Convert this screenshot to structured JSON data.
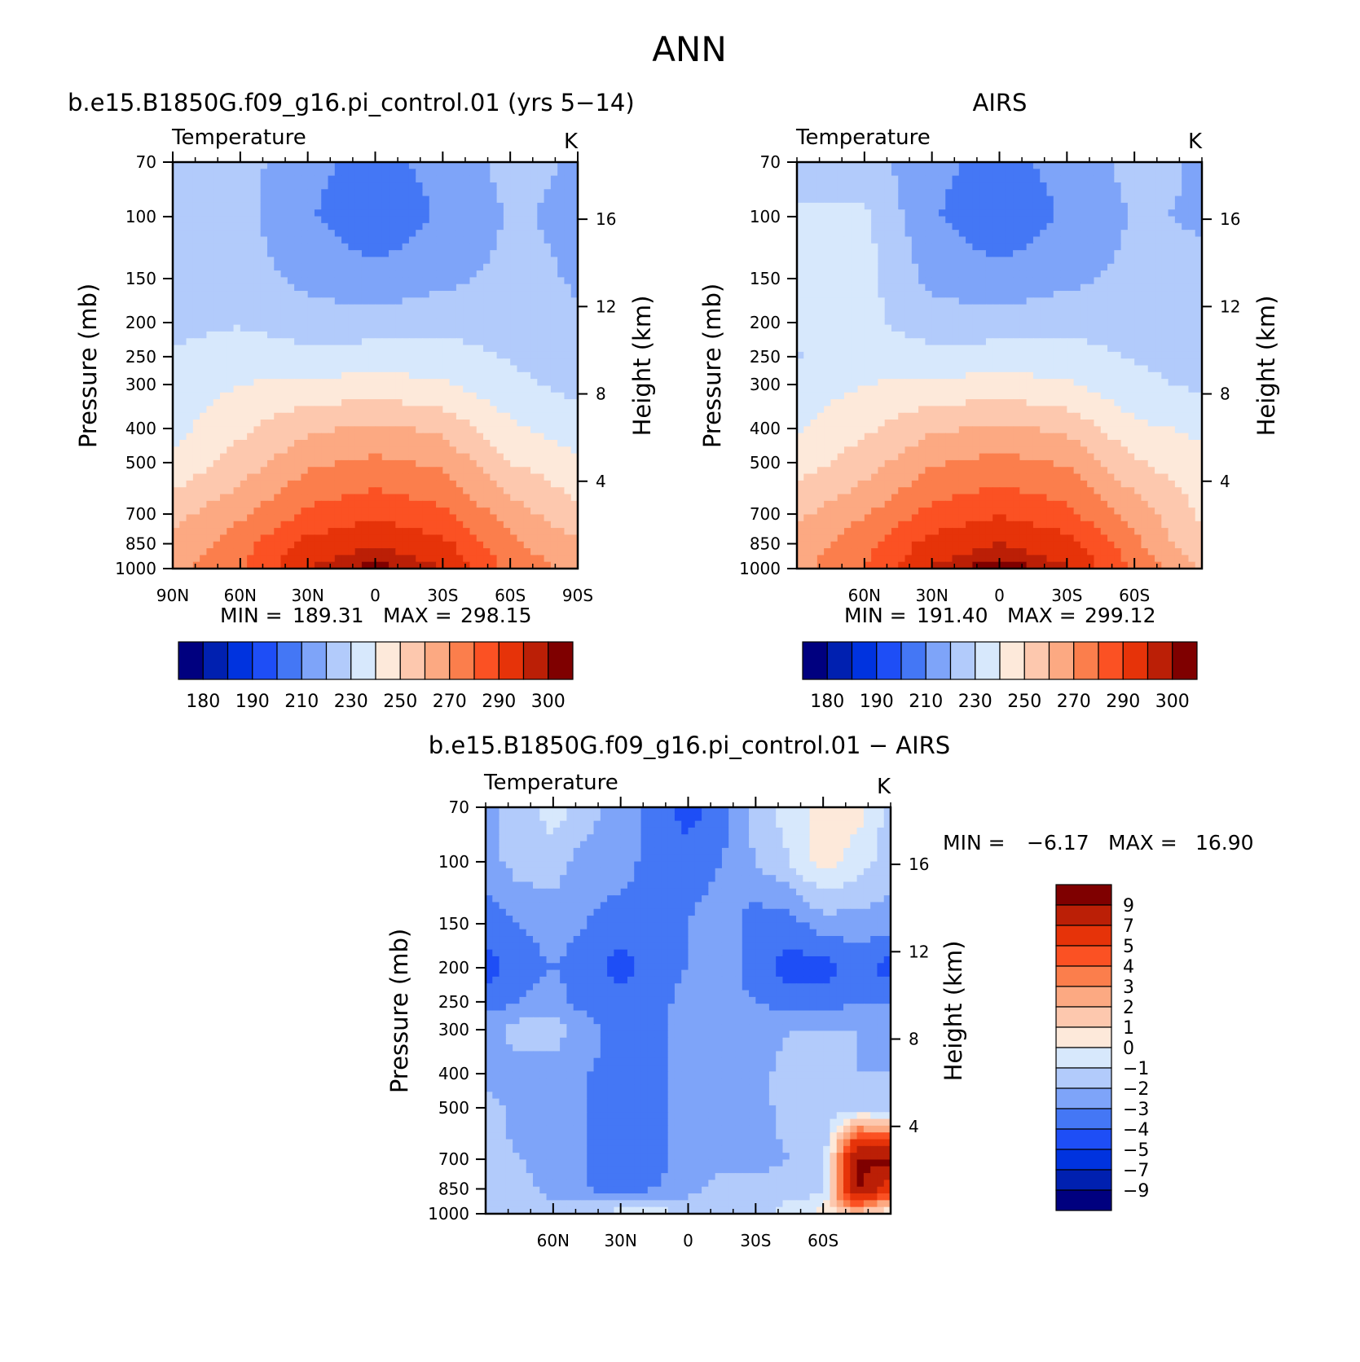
{
  "figure": {
    "title": "ANN"
  },
  "colorbars": {
    "abs": {
      "colors": [
        "#00007f",
        "#0020b0",
        "#0033df",
        "#1e4ef6",
        "#4477f5",
        "#7ea4f9",
        "#b2cbfb",
        "#d7e8fc",
        "#fde9da",
        "#fdc8ae",
        "#fca982",
        "#fb7e4c",
        "#fb5123",
        "#e63309",
        "#bb1f06",
        "#7f0000"
      ],
      "labels": [
        "180",
        "190",
        "210",
        "230",
        "250",
        "270",
        "290",
        "300"
      ]
    },
    "diff": {
      "colors": [
        "#7f0000",
        "#bb1f06",
        "#e63309",
        "#fb5123",
        "#fb7e4c",
        "#fca982",
        "#fdc8ae",
        "#fde9da",
        "#d7e8fc",
        "#b2cbfb",
        "#7ea4f9",
        "#4477f5",
        "#1e4ef6",
        "#0033df",
        "#0020b0",
        "#00007f"
      ],
      "labels": [
        "9",
        "7",
        "5",
        "4",
        "3",
        "2",
        "1",
        "0",
        "−1",
        "−2",
        "−3",
        "−4",
        "−5",
        "−7",
        "−9"
      ]
    }
  },
  "chart_data": [
    {
      "type": "heatmap",
      "title": "b.e15.B1850G.f09_g16.pi_control.01 (yrs 5−14)",
      "subtitle_left": "Temperature",
      "units": "K",
      "ylabel": "Pressure (mb)",
      "y2label": "Height (km)",
      "pressure_levels": [
        70,
        100,
        150,
        200,
        250,
        300,
        400,
        500,
        700,
        850,
        1000
      ],
      "pressure_labels": [
        "70",
        "100",
        "150",
        "200",
        "250",
        "300",
        "400",
        "500",
        "700",
        "850",
        "1000"
      ],
      "height_km_ticks": [
        16,
        12,
        8,
        4
      ],
      "height_labels": [
        "16",
        "12",
        "8",
        "4"
      ],
      "x_ticks": [
        -90,
        -60,
        -30,
        0,
        30,
        60,
        90
      ],
      "x_labels": [
        "90N",
        "60N",
        "30N",
        "0",
        "30S",
        "60S",
        "90S"
      ],
      "stats": {
        "min_label": "MIN =",
        "min": "189.31",
        "max_label": "MAX =",
        "max": "298.15"
      },
      "levels": [
        175,
        180,
        185,
        190,
        200,
        210,
        220,
        230,
        240,
        250,
        260,
        270,
        280,
        290,
        295,
        300
      ],
      "field": {
        "lat": [
          -90,
          -60,
          -30,
          0,
          30,
          60,
          90
        ],
        "plev": [
          70,
          100,
          150,
          200,
          250,
          300,
          400,
          500,
          700,
          850,
          1000
        ],
        "values": [
          [
            215,
            214,
            203,
            196,
            204,
            213,
            209
          ],
          [
            214,
            213,
            201,
            193,
            201,
            211,
            208
          ],
          [
            214,
            215,
            207,
            203,
            207,
            213,
            209
          ],
          [
            217,
            219,
            215,
            214,
            217,
            216,
            211
          ],
          [
            221,
            226,
            223,
            225,
            224,
            219,
            213
          ],
          [
            224,
            230,
            232,
            234,
            231,
            223,
            217
          ],
          [
            227,
            238,
            248,
            252,
            248,
            232,
            225
          ],
          [
            232,
            244,
            258,
            262,
            258,
            240,
            232
          ],
          [
            247,
            258,
            272,
            278,
            272,
            255,
            243
          ],
          [
            252,
            266,
            283,
            289,
            283,
            262,
            251
          ],
          [
            256,
            269,
            290,
            298,
            290,
            267,
            257
          ]
        ]
      }
    },
    {
      "type": "heatmap",
      "title": "AIRS",
      "subtitle_left": "Temperature",
      "units": "K",
      "ylabel": "Pressure (mb)",
      "y2label": "Height (km)",
      "pressure_levels": [
        70,
        100,
        150,
        200,
        250,
        300,
        400,
        500,
        700,
        850,
        1000
      ],
      "pressure_labels": [
        "70",
        "100",
        "150",
        "200",
        "250",
        "300",
        "400",
        "500",
        "700",
        "850",
        "1000"
      ],
      "height_km_ticks": [
        16,
        12,
        8,
        4
      ],
      "height_labels": [
        "16",
        "12",
        "8",
        "4"
      ],
      "x_ticks": [
        -60,
        -30,
        0,
        30,
        60
      ],
      "x_labels": [
        "60N",
        "30N",
        "0",
        "30S",
        "60S"
      ],
      "stats": {
        "min_label": "MIN =",
        "min": "191.40",
        "max_label": "MAX =",
        "max": "299.12"
      },
      "levels": [
        175,
        180,
        185,
        190,
        200,
        210,
        220,
        230,
        240,
        250,
        260,
        270,
        280,
        290,
        295,
        300
      ],
      "field": {
        "lat": [
          -90,
          -60,
          -30,
          0,
          30,
          60,
          90
        ],
        "plev": [
          70,
          100,
          150,
          200,
          250,
          300,
          400,
          500,
          700,
          850,
          1000
        ],
        "values": [
          [
            215,
            214,
            203,
            196,
            204,
            213,
            209
          ],
          [
            222,
            222,
            201,
            193,
            201,
            211,
            209
          ],
          [
            224,
            224,
            207,
            203,
            207,
            213,
            212
          ],
          [
            223,
            222,
            215,
            214,
            217,
            216,
            214
          ],
          [
            219,
            226,
            223,
            225,
            224,
            219,
            215
          ],
          [
            224,
            230,
            232,
            234,
            231,
            223,
            218
          ],
          [
            229,
            238,
            248,
            252,
            248,
            232,
            228
          ],
          [
            235,
            245,
            259,
            263,
            259,
            241,
            233
          ],
          [
            248,
            259,
            273,
            279,
            273,
            256,
            238
          ],
          [
            253,
            267,
            284,
            290,
            284,
            263,
            241
          ],
          [
            257,
            270,
            291,
            299,
            291,
            268,
            250
          ]
        ]
      }
    },
    {
      "type": "heatmap",
      "title": "b.e15.B1850G.f09_g16.pi_control.01 − AIRS",
      "subtitle_left": "Temperature",
      "units": "K",
      "ylabel": "Pressure (mb)",
      "y2label": "Height (km)",
      "pressure_levels": [
        70,
        100,
        150,
        200,
        250,
        300,
        400,
        500,
        700,
        850,
        1000
      ],
      "pressure_labels": [
        "70",
        "100",
        "150",
        "200",
        "250",
        "300",
        "400",
        "500",
        "700",
        "850",
        "1000"
      ],
      "height_km_ticks": [
        16,
        12,
        8,
        4
      ],
      "height_labels": [
        "16",
        "12",
        "8",
        "4"
      ],
      "x_ticks": [
        -60,
        -30,
        0,
        30,
        60
      ],
      "x_labels": [
        "60N",
        "30N",
        "0",
        "30S",
        "60S"
      ],
      "stats": {
        "min_label": "MIN =",
        "min": "−6.17",
        "max_label": "MAX =",
        "max": "16.90"
      },
      "levels": [
        -9,
        -7,
        -5,
        -4,
        -3,
        -2,
        -1,
        0,
        1,
        2,
        3,
        4,
        5,
        7,
        9
      ],
      "field": {
        "lat": [
          -90,
          -75,
          -60,
          -45,
          -30,
          -15,
          0,
          15,
          30,
          45,
          60,
          75,
          90
        ],
        "plev": [
          70,
          100,
          150,
          200,
          250,
          300,
          400,
          500,
          700,
          850,
          1000
        ],
        "values": [
          [
            -2.5,
            -1.5,
            -0.5,
            -1.5,
            -2.5,
            -3.5,
            -4.5,
            -3.5,
            -1.5,
            -0.5,
            0.5,
            0.5,
            -1.5
          ],
          [
            -2.5,
            -1.5,
            -1.5,
            -2.5,
            -2.5,
            -3.5,
            -3.5,
            -3.0,
            -2.0,
            -1.0,
            0.5,
            -0.5,
            -1.5
          ],
          [
            -3.5,
            -3.0,
            -2.5,
            -3.0,
            -3.5,
            -3.5,
            -3.0,
            -2.5,
            -3.5,
            -3.5,
            -2.5,
            -2.5,
            -2.5
          ],
          [
            -4.5,
            -3.5,
            -3.0,
            -3.5,
            -4.5,
            -3.5,
            -3.0,
            -2.5,
            -3.5,
            -4.5,
            -4.5,
            -3.5,
            -4.5
          ],
          [
            -3.5,
            -3.0,
            -2.5,
            -3.5,
            -3.5,
            -3.5,
            -2.5,
            -2.5,
            -3.0,
            -3.5,
            -3.5,
            -3.0,
            -3.0
          ],
          [
            -2.5,
            -1.5,
            -1.5,
            -2.5,
            -3.5,
            -3.5,
            -2.5,
            -2.5,
            -2.5,
            -2.0,
            -2.0,
            -2.0,
            -2.5
          ],
          [
            -2.5,
            -2.5,
            -2.5,
            -3.0,
            -3.5,
            -3.5,
            -2.5,
            -2.5,
            -2.5,
            -1.5,
            -1.5,
            -2.0,
            -2.0
          ],
          [
            -1.5,
            -2.5,
            -2.5,
            -3.0,
            -3.5,
            -3.5,
            -2.5,
            -2.5,
            -2.5,
            -1.5,
            -1.5,
            -1.5,
            -2.0
          ],
          [
            -1.5,
            -2.0,
            -2.5,
            -3.0,
            -3.5,
            -3.5,
            -2.5,
            -2.5,
            -2.5,
            -2.0,
            -2.0,
            9.5,
            9.5
          ],
          [
            -1.0,
            -1.5,
            -2.5,
            -3.0,
            -3.5,
            -3.0,
            -2.5,
            -1.5,
            -1.5,
            -1.5,
            -1.5,
            9.5,
            6.0
          ],
          [
            -1.5,
            -1.5,
            -1.5,
            -1.0,
            -0.5,
            -0.5,
            -1.0,
            -1.5,
            -1.5,
            -0.5,
            0.5,
            1.5,
            -0.5
          ]
        ]
      }
    }
  ]
}
